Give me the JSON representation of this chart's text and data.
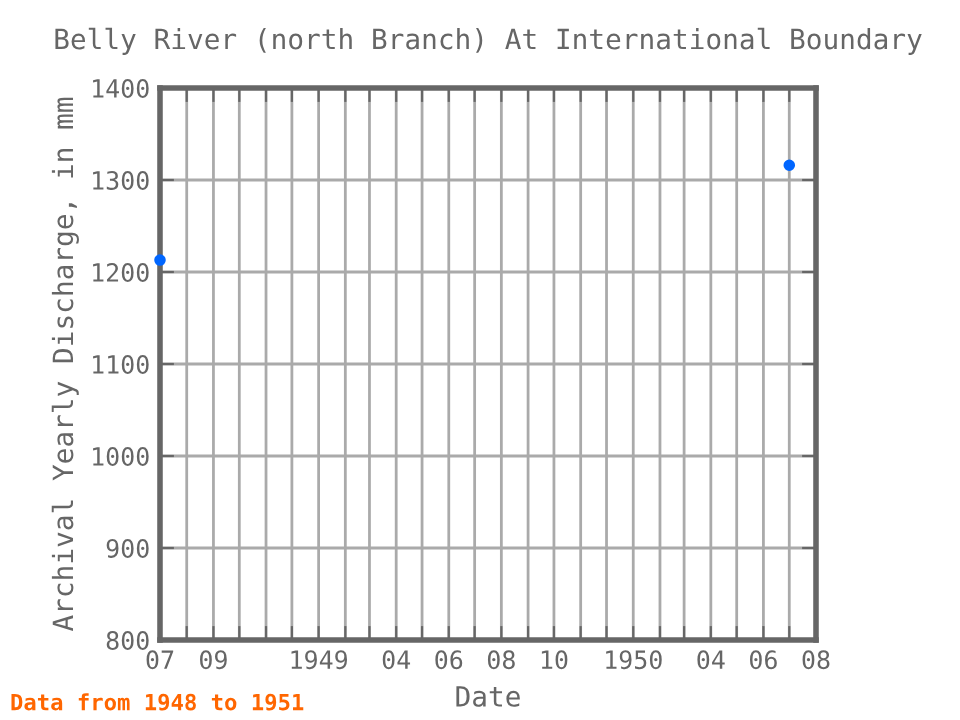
{
  "chart_data": {
    "type": "scatter",
    "title": "Belly River (north Branch) At International Boundary",
    "xlabel": "Date",
    "ylabel": "Archival Yearly Discharge, in mm",
    "x": [
      "1948-07-01",
      "1950-07-01"
    ],
    "series": [
      {
        "color": "#0066ff",
        "values": [
          1213,
          1316
        ]
      }
    ],
    "marker": "circle",
    "xlim": [
      "1948-07-01",
      "1950-08-01"
    ],
    "xticks": [
      {
        "value": "1948-07-01",
        "label": "07"
      },
      {
        "value": "1948-08-01",
        "label": null
      },
      {
        "value": "1948-09-01",
        "label": "09"
      },
      {
        "value": "1948-10-01",
        "label": null
      },
      {
        "value": "1948-11-01",
        "label": null
      },
      {
        "value": "1948-12-01",
        "label": null
      },
      {
        "value": "1949-01-01",
        "label": "1949"
      },
      {
        "value": "1949-02-01",
        "label": null
      },
      {
        "value": "1949-03-01",
        "label": null
      },
      {
        "value": "1949-04-01",
        "label": "04"
      },
      {
        "value": "1949-05-01",
        "label": null
      },
      {
        "value": "1949-06-01",
        "label": "06"
      },
      {
        "value": "1949-07-01",
        "label": null
      },
      {
        "value": "1949-08-01",
        "label": "08"
      },
      {
        "value": "1949-09-01",
        "label": null
      },
      {
        "value": "1949-10-01",
        "label": "10"
      },
      {
        "value": "1949-11-01",
        "label": null
      },
      {
        "value": "1949-12-01",
        "label": null
      },
      {
        "value": "1950-01-01",
        "label": "1950"
      },
      {
        "value": "1950-02-01",
        "label": null
      },
      {
        "value": "1950-03-01",
        "label": null
      },
      {
        "value": "1950-04-01",
        "label": "04"
      },
      {
        "value": "1950-05-01",
        "label": null
      },
      {
        "value": "1950-06-01",
        "label": "06"
      },
      {
        "value": "1950-07-01",
        "label": null
      },
      {
        "value": "1950-08-01",
        "label": "08"
      }
    ],
    "ylim": [
      800,
      1400
    ],
    "yticks": [
      800,
      900,
      1000,
      1100,
      1200,
      1300,
      1400
    ],
    "grid": true,
    "annotations": [
      "Data from 1948 to 1951"
    ]
  }
}
